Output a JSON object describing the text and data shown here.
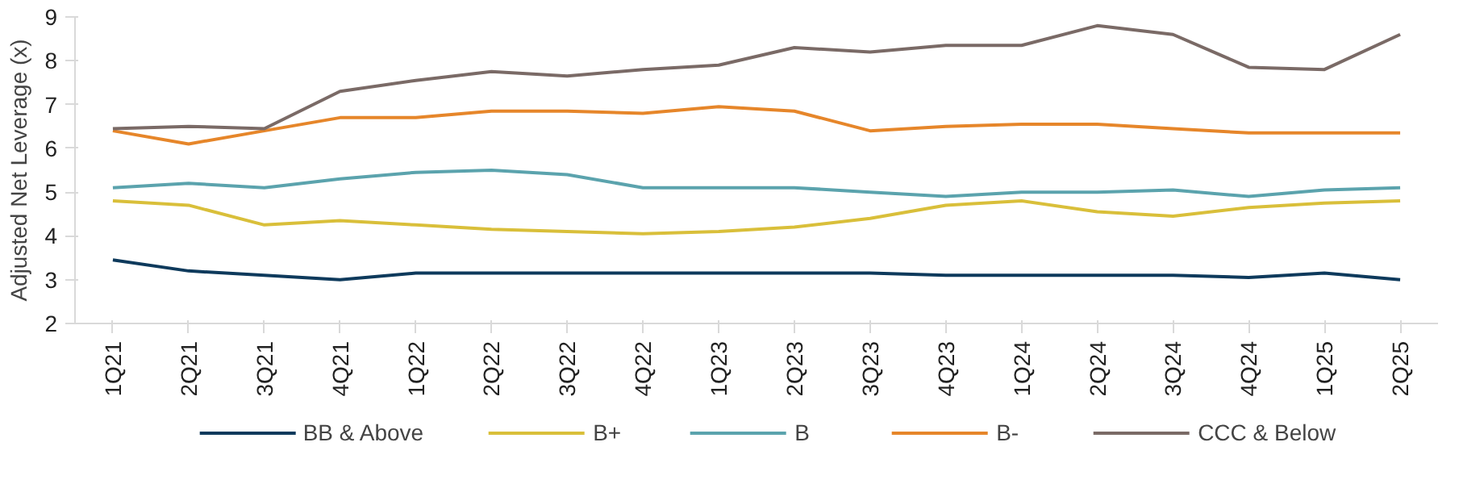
{
  "chart_data": {
    "type": "line",
    "ylabel": "Adjusted Net Leverage (x)",
    "categories": [
      "1Q21",
      "2Q21",
      "3Q21",
      "4Q21",
      "1Q22",
      "2Q22",
      "3Q22",
      "4Q22",
      "1Q23",
      "2Q23",
      "3Q23",
      "4Q23",
      "1Q24",
      "2Q24",
      "3Q24",
      "4Q24",
      "1Q25",
      "2Q25"
    ],
    "ylim": [
      2,
      9
    ],
    "yticks": [
      2,
      3,
      4,
      5,
      6,
      7,
      8,
      9
    ],
    "grid": false,
    "legend": "bottom",
    "marker": "none",
    "line_style": "solid",
    "series": [
      {
        "name": "BB & Above",
        "color": "#0e3a5c",
        "values": [
          3.45,
          3.2,
          3.1,
          3.0,
          3.15,
          3.15,
          3.15,
          3.15,
          3.15,
          3.15,
          3.15,
          3.1,
          3.1,
          3.1,
          3.1,
          3.05,
          3.15,
          3.0
        ]
      },
      {
        "name": "B+",
        "color": "#d9bf3a",
        "values": [
          4.8,
          4.7,
          4.25,
          4.35,
          4.25,
          4.15,
          4.1,
          4.05,
          4.1,
          4.2,
          4.4,
          4.7,
          4.8,
          4.55,
          4.45,
          4.65,
          4.75,
          4.8
        ]
      },
      {
        "name": "B",
        "color": "#5ba3ad",
        "values": [
          5.1,
          5.2,
          5.1,
          5.3,
          5.45,
          5.5,
          5.4,
          5.1,
          5.1,
          5.1,
          5.0,
          4.9,
          5.0,
          5.0,
          5.05,
          4.9,
          5.05,
          5.1
        ]
      },
      {
        "name": "B-",
        "color": "#e6862a",
        "values": [
          6.4,
          6.1,
          6.4,
          6.7,
          6.7,
          6.85,
          6.85,
          6.8,
          6.95,
          6.85,
          6.4,
          6.5,
          6.55,
          6.55,
          6.45,
          6.35,
          6.35,
          6.35
        ]
      },
      {
        "name": "CCC & Below",
        "color": "#7a6a66",
        "values": [
          6.45,
          6.5,
          6.45,
          7.3,
          7.55,
          7.75,
          7.65,
          7.8,
          7.9,
          8.3,
          8.2,
          8.35,
          8.35,
          8.8,
          8.6,
          7.85,
          7.8,
          8.6
        ]
      }
    ]
  }
}
